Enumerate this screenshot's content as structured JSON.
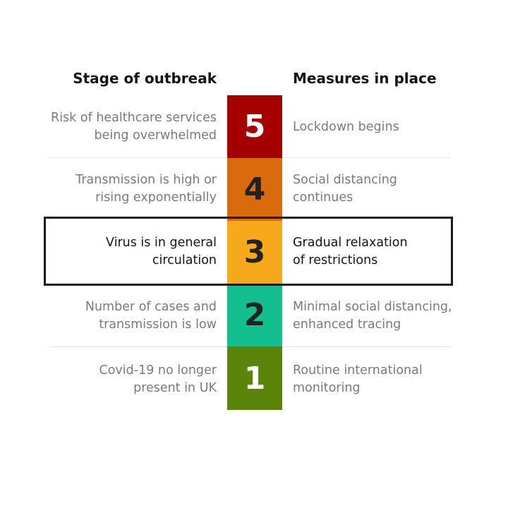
{
  "headers": {
    "stage": "Stage of outbreak",
    "measures": "Measures in place"
  },
  "levels": [
    {
      "number": "5",
      "color": "#a50000",
      "text_color": "#ffffff",
      "stage_lines": [
        "Risk of healthcare services",
        "being overwhelmed"
      ],
      "measure_lines": [
        "Lockdown begins"
      ]
    },
    {
      "number": "4",
      "color": "#d96b0c",
      "text_color": "#222222",
      "stage_lines": [
        "Transmission is high or",
        "rising exponentially"
      ],
      "measure_lines": [
        "Social distancing",
        "continues"
      ]
    },
    {
      "number": "3",
      "color": "#f7a91c",
      "text_color": "#222222",
      "stage_lines": [
        "Virus is in general",
        "circulation"
      ],
      "measure_lines": [
        "Gradual relaxation",
        "of restrictions"
      ]
    },
    {
      "number": "2",
      "color": "#13bf8f",
      "text_color": "#222222",
      "stage_lines": [
        "Number of cases and",
        "transmission is low"
      ],
      "measure_lines": [
        "Minimal social distancing,",
        "enhanced tracing"
      ]
    },
    {
      "number": "1",
      "color": "#5a840a",
      "text_color": "#ffffff",
      "stage_lines": [
        "Covid-19 no longer",
        "present in UK"
      ],
      "measure_lines": [
        "Routine international",
        "monitoring"
      ]
    }
  ],
  "highlighted_level": "3"
}
